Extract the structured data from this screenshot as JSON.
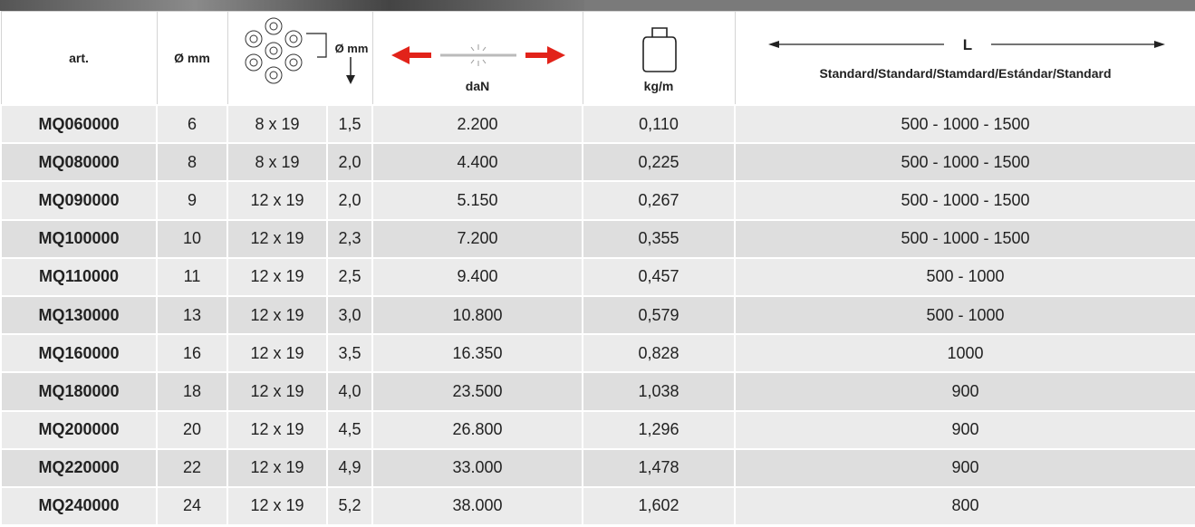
{
  "header": {
    "art": "art.",
    "diameter": "Ø mm",
    "wire_diameter": "Ø mm",
    "breaking_load": "daN",
    "weight": "kg/m",
    "length": "L",
    "length_note": "Standard/Standard/Stamdard/Estándar/Standard"
  },
  "table": {
    "rows": [
      [
        "MQ060000",
        "6",
        "8 x 19",
        "1,5",
        "2.200",
        "0,110",
        "500 - 1000 - 1500"
      ],
      [
        "MQ080000",
        "8",
        "8 x 19",
        "2,0",
        "4.400",
        "0,225",
        "500 - 1000 - 1500"
      ],
      [
        "MQ090000",
        "9",
        "12 x 19",
        "2,0",
        "5.150",
        "0,267",
        "500 - 1000 - 1500"
      ],
      [
        "MQ100000",
        "10",
        "12 x 19",
        "2,3",
        "7.200",
        "0,355",
        "500 - 1000 - 1500"
      ],
      [
        "MQ110000",
        "11",
        "12 x 19",
        "2,5",
        "9.400",
        "0,457",
        "500 - 1000"
      ],
      [
        "MQ130000",
        "13",
        "12 x 19",
        "3,0",
        "10.800",
        "0,579",
        "500 - 1000"
      ],
      [
        "MQ160000",
        "16",
        "12 x 19",
        "3,5",
        "16.350",
        "0,828",
        "1000"
      ],
      [
        "MQ180000",
        "18",
        "12 x 19",
        "4,0",
        "23.500",
        "1,038",
        "900"
      ],
      [
        "MQ200000",
        "20",
        "12 x 19",
        "4,5",
        "26.800",
        "1,296",
        "900"
      ],
      [
        "MQ220000",
        "22",
        "12 x 19",
        "4,9",
        "33.000",
        "1,478",
        "900"
      ],
      [
        "MQ240000",
        "24",
        "12 x 19",
        "5,2",
        "38.000",
        "1,602",
        "800"
      ]
    ]
  }
}
